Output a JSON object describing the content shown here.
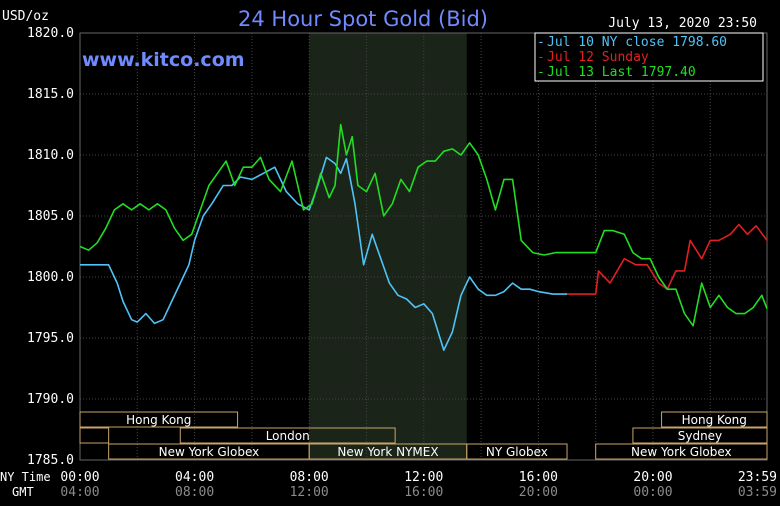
{
  "title": "24 Hour Spot Gold (Bid)",
  "unit_label": "USD/oz",
  "watermark": "www.kitco.com",
  "timestamp": "July 13, 2020 23:50",
  "legend": [
    {
      "text": "Jul 10 NY close 1798.60",
      "color": "#4fc3f7"
    },
    {
      "text": "Jul 12 Sunday",
      "color": "#e02020"
    },
    {
      "text": "Jul 13 Last 1797.40",
      "color": "#22dd22"
    }
  ],
  "time_axis": {
    "ny_label": "NY Time",
    "gmt_label": "GMT",
    "ny_ticks": [
      "00:00",
      "04:00",
      "08:00",
      "12:00",
      "16:00",
      "20:00",
      "23:59"
    ],
    "gmt_ticks": [
      "04:00",
      "08:00",
      "12:00",
      "16:00",
      "20:00",
      "00:00",
      "03:59"
    ]
  },
  "sessions": [
    {
      "label": "Hong Kong",
      "start_h": 0,
      "end_h": 5.5,
      "row": 0
    },
    {
      "label": "Hong Kong",
      "start_h": 20.3,
      "end_h": 23.98,
      "row": 0
    },
    {
      "label": "London",
      "start_h": 3.5,
      "end_h": 11.0,
      "row": 1
    },
    {
      "label": "Sydney",
      "start_h": 19.3,
      "end_h": 23.98,
      "row": 1
    },
    {
      "label": "",
      "start_h": 0,
      "end_h": 1.0,
      "row": 1
    },
    {
      "label": "New York Globex",
      "start_h": 1.0,
      "end_h": 8.0,
      "row": 2
    },
    {
      "label": "New York NYMEX",
      "start_h": 8.0,
      "end_h": 13.5,
      "row": 2
    },
    {
      "label": "NY Globex",
      "start_h": 13.5,
      "end_h": 17.0,
      "row": 2
    },
    {
      "label": "New York Globex",
      "start_h": 18.0,
      "end_h": 23.98,
      "row": 2
    }
  ],
  "chart_data": {
    "type": "line",
    "title": "24 Hour Spot Gold (Bid)",
    "ylabel": "USD/oz",
    "ylim": [
      1785,
      1820
    ],
    "y_ticks": [
      1785.0,
      1790.0,
      1795.0,
      1800.0,
      1805.0,
      1810.0,
      1815.0,
      1820.0
    ],
    "xlim": [
      0,
      23.98
    ],
    "nymex_session": [
      8.0,
      13.5
    ],
    "grid": true,
    "series": [
      {
        "name": "Jul 10 NY close 1798.60",
        "color": "#4fc3f7",
        "x": [
          0,
          0.5,
          1,
          1.3,
          1.5,
          1.8,
          2.0,
          2.3,
          2.6,
          2.9,
          3.2,
          3.5,
          3.8,
          4.0,
          4.3,
          4.6,
          5.0,
          5.3,
          5.6,
          6.0,
          6.4,
          6.8,
          7.2,
          7.6,
          8.0,
          8.3,
          8.6,
          8.9,
          9.1,
          9.3,
          9.6,
          9.9,
          10.2,
          10.5,
          10.8,
          11.1,
          11.4,
          11.7,
          12.0,
          12.3,
          12.5,
          12.7,
          13.0,
          13.3,
          13.6,
          13.9,
          14.2,
          14.5,
          14.8,
          15.1,
          15.4,
          15.7,
          16.0,
          16.5,
          17.0
        ],
        "y": [
          1801,
          1801,
          1801,
          1799.5,
          1798,
          1796.5,
          1796.3,
          1797,
          1796.2,
          1796.5,
          1798,
          1799.5,
          1801,
          1803,
          1805,
          1806,
          1807.5,
          1807.5,
          1808.2,
          1808,
          1808.5,
          1809,
          1807,
          1806,
          1805.5,
          1807.5,
          1809.8,
          1809.3,
          1808.5,
          1809.7,
          1806,
          1801,
          1803.5,
          1801.5,
          1799.5,
          1798.5,
          1798.2,
          1797.5,
          1797.8,
          1797,
          1795.5,
          1794,
          1795.5,
          1798.5,
          1800,
          1799,
          1798.5,
          1798.5,
          1798.8,
          1799.5,
          1799,
          1799,
          1798.8,
          1798.6,
          1798.6
        ]
      },
      {
        "name": "Jul 12 Sunday",
        "color": "#e02020",
        "x": [
          17.0,
          17.5,
          18.0,
          18.1,
          18.5,
          19.0,
          19.4,
          19.8,
          20.2,
          20.5,
          20.8,
          21.1,
          21.3,
          21.7,
          22.0,
          22.3,
          22.7,
          23.0,
          23.3,
          23.6,
          23.98
        ],
        "y": [
          1798.6,
          1798.6,
          1798.6,
          1800.5,
          1799.5,
          1801.5,
          1801,
          1801,
          1799.5,
          1799,
          1800.5,
          1800.5,
          1803,
          1801.5,
          1803,
          1803,
          1803.5,
          1804.3,
          1803.5,
          1804.2,
          1803
        ]
      },
      {
        "name": "Jul 13 Last 1797.40",
        "color": "#22dd22",
        "x": [
          0,
          0.3,
          0.6,
          0.9,
          1.2,
          1.5,
          1.8,
          2.1,
          2.4,
          2.7,
          3.0,
          3.3,
          3.6,
          3.9,
          4.2,
          4.5,
          4.8,
          5.1,
          5.4,
          5.7,
          6.0,
          6.3,
          6.6,
          7.0,
          7.4,
          7.8,
          8.1,
          8.4,
          8.7,
          8.9,
          9.1,
          9.3,
          9.5,
          9.7,
          10.0,
          10.3,
          10.6,
          10.9,
          11.2,
          11.5,
          11.8,
          12.1,
          12.4,
          12.7,
          13.0,
          13.3,
          13.6,
          13.9,
          14.2,
          14.5,
          14.8,
          15.1,
          15.4,
          15.8,
          16.2,
          16.6,
          17.0,
          17.5,
          18.0,
          18.3,
          18.6,
          19.0,
          19.3,
          19.6,
          19.9,
          20.2,
          20.5,
          20.8,
          21.1,
          21.4,
          21.7,
          22.0,
          22.3,
          22.6,
          22.9,
          23.2,
          23.5,
          23.8,
          23.98
        ],
        "y": [
          1802.5,
          1802.2,
          1802.8,
          1804,
          1805.5,
          1806,
          1805.5,
          1806,
          1805.5,
          1806,
          1805.5,
          1804,
          1803,
          1803.5,
          1805.5,
          1807.5,
          1808.5,
          1809.5,
          1807.5,
          1809,
          1809,
          1809.8,
          1808,
          1807,
          1809.5,
          1805.5,
          1806,
          1808.5,
          1806.5,
          1807.5,
          1812.5,
          1810,
          1811.5,
          1807.5,
          1807,
          1808.5,
          1805,
          1806,
          1808,
          1807,
          1809,
          1809.5,
          1809.5,
          1810.3,
          1810.5,
          1810,
          1811,
          1810,
          1808,
          1805.5,
          1808,
          1808,
          1803,
          1802,
          1801.8,
          1802,
          1802,
          1802,
          1802,
          1803.8,
          1803.8,
          1803.5,
          1802,
          1801.5,
          1801.5,
          1800,
          1799,
          1799,
          1797,
          1796,
          1799.5,
          1797.5,
          1798.5,
          1797.5,
          1797,
          1797,
          1797.5,
          1798.5,
          1797.4
        ]
      }
    ]
  }
}
